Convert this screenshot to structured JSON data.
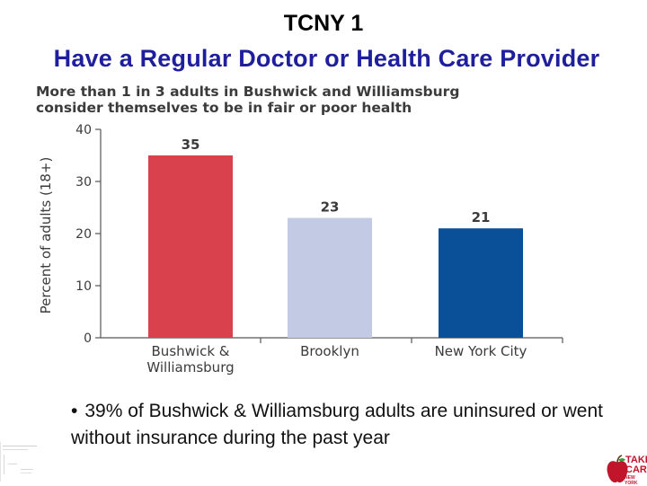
{
  "slide": {
    "label": "TCNY 1",
    "title": "Have a Regular Doctor or Health Care Provider"
  },
  "chart_data": {
    "type": "bar",
    "title": "More than 1 in 3 adults in Bushwick and Williamsburg consider themselves to be in fair or poor health",
    "title_lines": [
      "More than 1 in 3 adults in Bushwick and Williamsburg",
      "consider themselves to be in fair or poor health"
    ],
    "categories": [
      "Bushwick & Williamsburg",
      "Brooklyn",
      "New York City"
    ],
    "category_lines": [
      [
        "Bushwick &",
        "Williamsburg"
      ],
      [
        "Brooklyn"
      ],
      [
        "New York City"
      ]
    ],
    "values": [
      35,
      23,
      21
    ],
    "data_labels": [
      "35",
      "23",
      "21"
    ],
    "bar_colors": [
      "#d9414d",
      "#c3cbe4",
      "#0a5099"
    ],
    "ylabel": "Percent of adults (18+)",
    "xlabel": "",
    "ylim": [
      0,
      40
    ],
    "yticks": [
      0,
      10,
      20,
      30,
      40
    ],
    "grid": false
  },
  "bullet": {
    "symbol": "•",
    "text": "39% of Bushwick & Williamsburg adults are uninsured or went without insurance during the past year"
  },
  "logo": {
    "line1": "TAKE",
    "line2": "CARE",
    "line3": "NEW YORK",
    "color": "#c0152a",
    "icon": "apple-icon"
  }
}
